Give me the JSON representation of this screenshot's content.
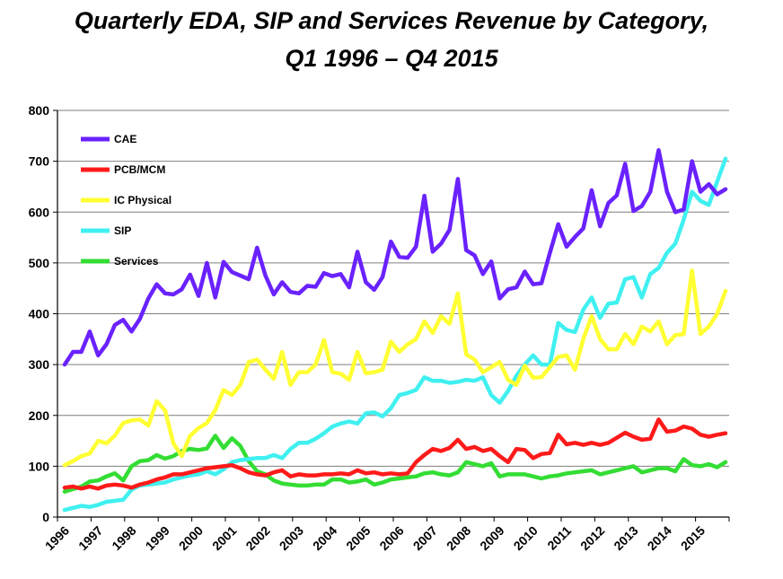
{
  "title_line1": "Quarterly EDA, SIP and Services Revenue by Category,",
  "title_line2": "Q1 1996 – Q4 2015",
  "chart_data": {
    "type": "line",
    "title": "Quarterly EDA, SIP and Services Revenue by Category, Q1 1996 – Q4 2015",
    "xlabel": "",
    "ylabel": "",
    "ylim": [
      0,
      800
    ],
    "yticks": [
      0,
      100,
      200,
      300,
      400,
      500,
      600,
      700,
      800
    ],
    "x_start_year": 1996,
    "x_tick_labels": [
      "1996",
      "1997",
      "1998",
      "1999",
      "2000",
      "2001",
      "2002",
      "2003",
      "2004",
      "2005",
      "2006",
      "2007",
      "2008",
      "2009",
      "2010",
      "2011",
      "2012",
      "2013",
      "2014",
      "2015"
    ],
    "grid": "horizontal",
    "legend_position": "top-left",
    "series": [
      {
        "name": "CAE",
        "color": "#6a22ff",
        "values": [
          300,
          325,
          325,
          365,
          318,
          340,
          378,
          388,
          365,
          390,
          430,
          458,
          440,
          438,
          448,
          477,
          435,
          500,
          432,
          502,
          482,
          475,
          468,
          530,
          475,
          438,
          462,
          443,
          440,
          455,
          453,
          480,
          474,
          478,
          452,
          522,
          462,
          447,
          472,
          542,
          512,
          510,
          532,
          632,
          522,
          538,
          565,
          665,
          525,
          515,
          478,
          503,
          430,
          448,
          452,
          483,
          458,
          460,
          520,
          576,
          532,
          551,
          568,
          643,
          572,
          618,
          633,
          695,
          602,
          612,
          640,
          722,
          640,
          600,
          605,
          700,
          640,
          655,
          635,
          645
        ]
      },
      {
        "name": "PCB/MCM",
        "color": "#ff1a1a",
        "values": [
          58,
          60,
          56,
          60,
          56,
          62,
          64,
          62,
          58,
          64,
          68,
          74,
          78,
          84,
          84,
          88,
          92,
          96,
          98,
          100,
          102,
          96,
          88,
          84,
          82,
          88,
          92,
          80,
          84,
          82,
          82,
          84,
          84,
          86,
          84,
          92,
          86,
          88,
          84,
          86,
          84,
          86,
          108,
          122,
          134,
          130,
          136,
          152,
          134,
          138,
          130,
          134,
          120,
          108,
          134,
          132,
          116,
          124,
          126,
          162,
          143,
          146,
          142,
          146,
          142,
          146,
          156,
          166,
          158,
          152,
          154,
          192,
          168,
          170,
          178,
          174,
          162,
          158,
          162,
          165
        ]
      },
      {
        "name": "IC Physical",
        "color": "#ffff33",
        "values": [
          102,
          110,
          120,
          125,
          150,
          145,
          160,
          185,
          190,
          192,
          180,
          228,
          210,
          145,
          120,
          160,
          175,
          185,
          210,
          250,
          240,
          260,
          305,
          310,
          290,
          272,
          325,
          260,
          285,
          285,
          300,
          348,
          285,
          282,
          270,
          325,
          283,
          285,
          290,
          345,
          325,
          340,
          350,
          385,
          362,
          395,
          380,
          440,
          320,
          310,
          285,
          295,
          305,
          270,
          260,
          298,
          274,
          275,
          295,
          315,
          318,
          290,
          350,
          395,
          350,
          330,
          330,
          360,
          340,
          375,
          365,
          385,
          340,
          358,
          360,
          485,
          360,
          375,
          400,
          445
        ]
      },
      {
        "name": "SIP",
        "color": "#40f0f0",
        "values": [
          14,
          18,
          22,
          20,
          24,
          30,
          32,
          34,
          54,
          62,
          64,
          66,
          68,
          74,
          78,
          82,
          84,
          90,
          84,
          94,
          108,
          112,
          114,
          116,
          116,
          122,
          116,
          134,
          146,
          146,
          154,
          165,
          178,
          184,
          188,
          184,
          204,
          206,
          198,
          214,
          240,
          244,
          250,
          275,
          268,
          268,
          264,
          266,
          270,
          268,
          275,
          240,
          225,
          248,
          278,
          300,
          318,
          300,
          300,
          382,
          368,
          364,
          408,
          432,
          392,
          420,
          422,
          468,
          472,
          432,
          478,
          490,
          520,
          538,
          585,
          640,
          622,
          614,
          660,
          705
        ]
      },
      {
        "name": "Services",
        "color": "#33dd33",
        "values": [
          50,
          55,
          60,
          70,
          72,
          80,
          86,
          72,
          100,
          110,
          112,
          122,
          115,
          120,
          130,
          134,
          132,
          135,
          160,
          136,
          155,
          140,
          110,
          90,
          84,
          72,
          66,
          64,
          62,
          62,
          64,
          64,
          74,
          74,
          68,
          70,
          74,
          64,
          68,
          74,
          76,
          78,
          80,
          86,
          88,
          84,
          82,
          88,
          108,
          104,
          100,
          106,
          80,
          84,
          84,
          84,
          80,
          76,
          80,
          82,
          86,
          88,
          90,
          92,
          84,
          88,
          92,
          96,
          100,
          88,
          92,
          96,
          96,
          90,
          114,
          102,
          100,
          104,
          98,
          108
        ]
      }
    ]
  }
}
